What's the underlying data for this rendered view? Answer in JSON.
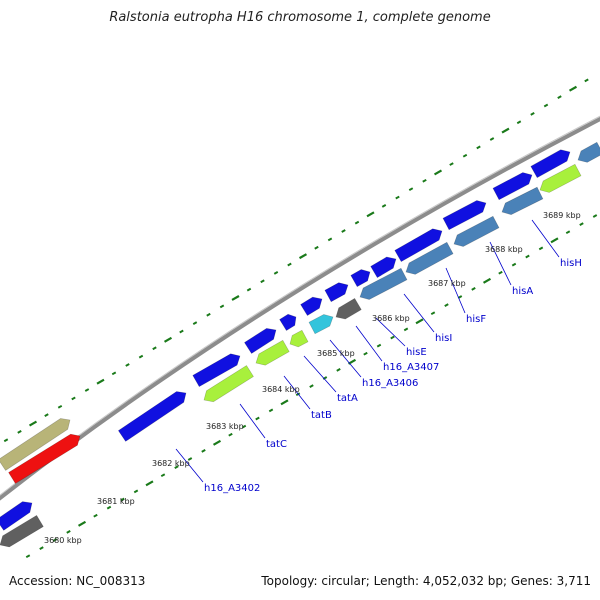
{
  "title": "Ralstonia eutropha H16 chromosome 1, complete genome",
  "footer": {
    "accession": "Accession: NC_008313",
    "summary": "Topology: circular; Length: 4,052,032 bp; Genes: 3,711"
  },
  "colors": {
    "backbone": "#8c8c8c",
    "tick": "#1a7a1a",
    "blue_gene": "#1010e0",
    "lime_gene": "#a8f03c",
    "steel_gene": "#4a82b8",
    "gray_gene": "#606060",
    "red_gene": "#ee1111",
    "khaki_gene": "#b8b478",
    "cyan_gene": "#33c4dc",
    "label_text": "#0000cc"
  },
  "kbp_labels": [
    "3680 kbp",
    "3681 kbp",
    "3682 kbp",
    "3683 kbp",
    "3684 kbp",
    "3685 kbp",
    "3686 kbp",
    "3687 kbp",
    "3688 kbp",
    "3689 kbp"
  ],
  "gene_labels": [
    "h16_A3402",
    "tatC",
    "tatB",
    "tatA",
    "h16_A3406",
    "h16_A3407",
    "hisE",
    "hisI",
    "hisF",
    "hisA",
    "hisH"
  ]
}
